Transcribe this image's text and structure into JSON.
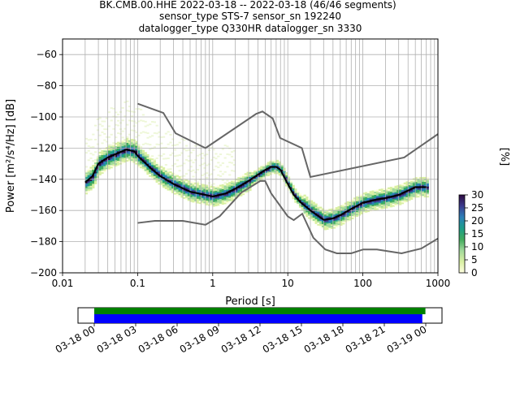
{
  "title": {
    "line1": "BK.CMB.00.HHE   2022-03-18 -- 2022-03-18  (46/46 segments)",
    "line2": "sensor_type STS-7 sensor_sn 192240",
    "line3": "datalogger_type Q330HR datalogger_sn 3330"
  },
  "colors": {
    "noise_model": "#666666",
    "mode_line": "#000000",
    "coverage_all": "#008000",
    "coverage_used": "#0000ff"
  },
  "chart_data": {
    "type": "heatmap",
    "subtype": "probabilistic-power-spectral-density",
    "xlabel": "Period [s]",
    "ylabel": "Power [m²/s⁴/Hz] [dB]",
    "x_scale": "log",
    "xlim": [
      0.01,
      1000
    ],
    "ylim": [
      -200,
      -50
    ],
    "x_ticks": [
      {
        "value": 0.01,
        "label": "0.01"
      },
      {
        "value": 0.1,
        "label": "0.1"
      },
      {
        "value": 1,
        "label": "1"
      },
      {
        "value": 10,
        "label": "10"
      },
      {
        "value": 100,
        "label": "100"
      },
      {
        "value": 1000,
        "label": "1000"
      }
    ],
    "y_ticks": [
      -60,
      -80,
      -100,
      -120,
      -140,
      -160,
      -180,
      -200
    ],
    "grid": true,
    "colorbar": {
      "label": "[%]",
      "min": 0,
      "max": 30,
      "ticks": [
        0,
        5,
        10,
        15,
        20,
        25,
        30
      ],
      "colors": [
        "#ffffe0",
        "#d9f0a3",
        "#a1d99b",
        "#41ab5d",
        "#1d9e8a",
        "#2c7fb8",
        "#3b3b8f",
        "#2d0a3f"
      ]
    },
    "mode_line": {
      "period": [
        0.02,
        0.025,
        0.03,
        0.04,
        0.05,
        0.07,
        0.09,
        0.1,
        0.15,
        0.2,
        0.3,
        0.5,
        0.8,
        1,
        1.5,
        2,
        3,
        4,
        5,
        6,
        7,
        8,
        10,
        12,
        15,
        20,
        30,
        40,
        50,
        70,
        100,
        150,
        200,
        300,
        500,
        700
      ],
      "power": [
        -142,
        -138,
        -130,
        -126,
        -124,
        -121,
        -122,
        -125,
        -133,
        -138,
        -143,
        -148,
        -150,
        -151,
        -149,
        -146,
        -141,
        -137,
        -134,
        -132,
        -132,
        -134,
        -143,
        -150,
        -155,
        -160,
        -166,
        -165,
        -163,
        -159,
        -155,
        -153,
        -152,
        -150,
        -145,
        -145
      ]
    },
    "noise_models": [
      {
        "period": [
          0.1,
          0.17,
          0.4,
          0.8,
          1.24,
          2.4,
          4.3,
          5,
          6,
          10,
          12,
          15.6,
          21.9,
          31.6,
          45,
          70,
          101,
          154,
          328,
          600,
          1000
        ],
        "power": [
          -168,
          -166.7,
          -166.7,
          -169.2,
          -163.7,
          -148.6,
          -141.1,
          -141.1,
          -149,
          -163.8,
          -166.2,
          -162.1,
          -177.5,
          -185,
          -187.5,
          -187.5,
          -185,
          -185,
          -187.5,
          -184.4,
          -178
        ]
      },
      {
        "period": [
          0.1,
          0.22,
          0.32,
          0.8,
          3.8,
          4.6,
          6.3,
          7.9,
          15.4,
          20,
          354.8,
          1000
        ],
        "power": [
          -91.5,
          -97.4,
          -110.5,
          -120,
          -98,
          -96.5,
          -101,
          -113.5,
          -120,
          -138.5,
          -126,
          -111
        ]
      }
    ]
  },
  "coverage": {
    "tick_labels": [
      "03-18 00",
      "03-18 03",
      "03-18 06",
      "03-18 09",
      "03-18 12",
      "03-18 15",
      "03-18 18",
      "03-18 21",
      "03-19 00"
    ],
    "all_data_end_fraction": 0.999,
    "used_data_end_fraction": 0.9896
  }
}
